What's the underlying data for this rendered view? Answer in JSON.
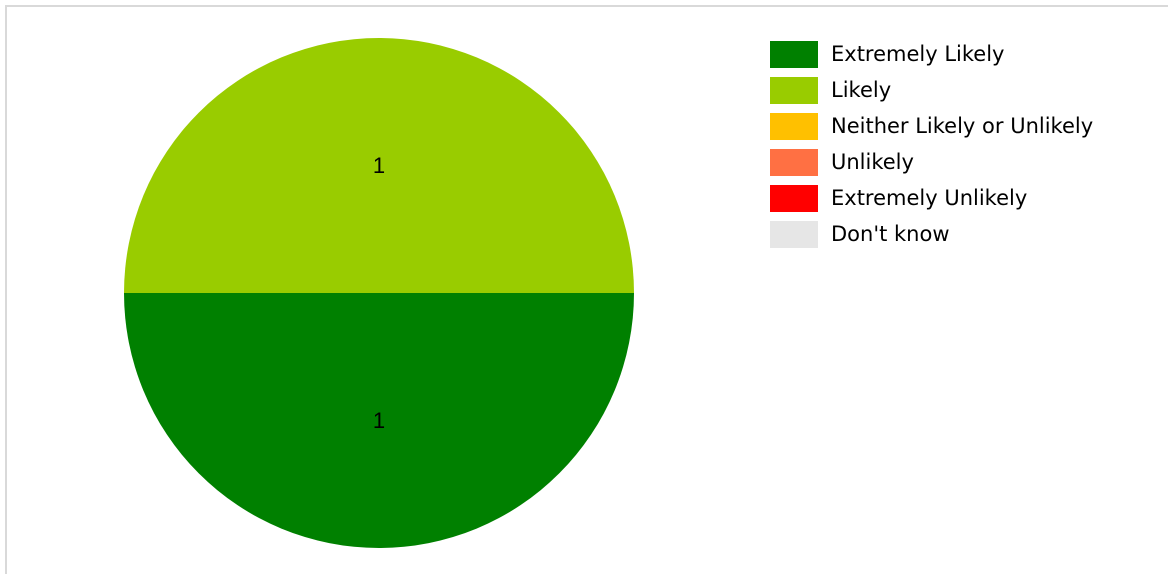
{
  "chart_data": {
    "type": "pie",
    "title": "",
    "categories": [
      "Extremely Likely",
      "Likely",
      "Neither Likely or Unlikely",
      "Unlikely",
      "Extremely Unlikely",
      "Don't know"
    ],
    "values": [
      1,
      1,
      0,
      0,
      0,
      0
    ],
    "colors": [
      "#008000",
      "#99cc00",
      "#ffc000",
      "#ff7043",
      "#ff0000",
      "#e6e6e6"
    ],
    "data_labels": [
      "1",
      "1",
      "",
      "",
      "",
      ""
    ],
    "legend_position": "top-right"
  }
}
